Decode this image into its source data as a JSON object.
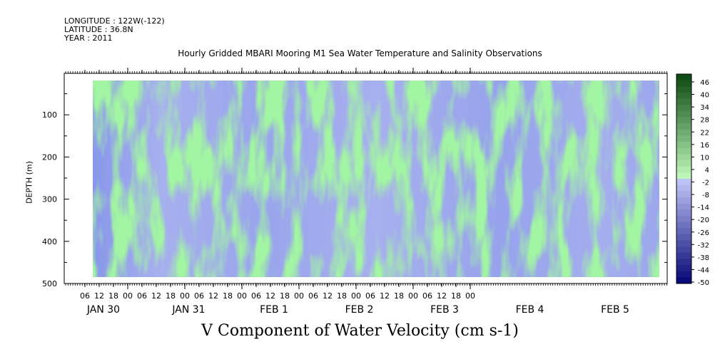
{
  "header": {
    "longitude": "LONGITUDE : 122W(-122)",
    "latitude": "LATITUDE : 36.8N",
    "year": "YEAR : 2011"
  },
  "chart_data": {
    "type": "heatmap",
    "title": "Hourly Gridded MBARI Mooring M1 Sea Water Temperature and Salinity Observations",
    "xlabel": "V Component of Water Velocity (cm s-1)",
    "ylabel": "DEPTH (m)",
    "ylim": [
      500,
      0
    ],
    "y_ticks": [
      100,
      200,
      300,
      400,
      500
    ],
    "x_hour_ticks": [
      "06",
      "12",
      "18",
      "00",
      "06",
      "12",
      "18",
      "00",
      "06",
      "12",
      "18",
      "00",
      "06",
      "12",
      "18",
      "00",
      "06",
      "12",
      "18",
      "00",
      "06",
      "12",
      "18",
      "00",
      "06",
      "12",
      "18",
      "00"
    ],
    "x_day_labels": [
      "JAN 30",
      "JAN 31",
      "FEB  1",
      "FEB  2",
      "FEB  3",
      "FEB  4",
      "FEB  5"
    ],
    "colorbar": {
      "labels": [
        "46",
        "40",
        "34",
        "28",
        "22",
        "16",
        "10",
        "4",
        "-2",
        "-8",
        "-14",
        "-20",
        "-26",
        "-32",
        "-38",
        "-44",
        "-50"
      ],
      "min": -50,
      "max": 50
    },
    "colors": {
      "negative": "#a7b0ee",
      "positive": "#8ee88e",
      "frame": "#000000"
    }
  }
}
